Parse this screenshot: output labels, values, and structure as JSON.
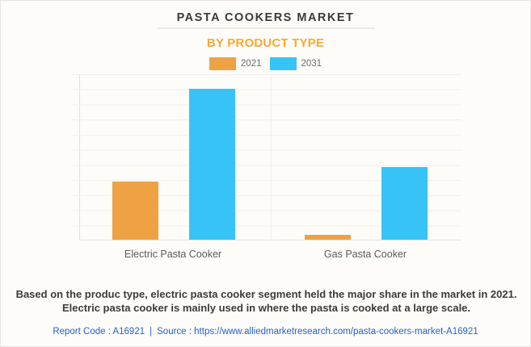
{
  "header": {
    "title": "PASTA COOKERS MARKET",
    "subtitle": "BY PRODUCT TYPE"
  },
  "chart_data": {
    "type": "bar",
    "categories": [
      "Electric Pasta Cooker",
      "Gas Pasta Cooker"
    ],
    "series": [
      {
        "name": "2021",
        "color": "#efa243",
        "values": [
          35,
          3
        ]
      },
      {
        "name": "2031",
        "color": "#38c3f6",
        "values": [
          91,
          44
        ]
      }
    ],
    "title": "PASTA COOKERS MARKET",
    "subtitle": "BY PRODUCT TYPE",
    "xlabel": "",
    "ylabel": "",
    "ylim": [
      0,
      100
    ],
    "grid": true,
    "legend_position": "top",
    "value_labels_shown": false,
    "y_tick_labels_shown": false
  },
  "description": "Based on the produc type, electric pasta cooker segment held the major share in the market in 2021. Electric pasta cooker is mainly used in where the pasta is cooked at a large scale.",
  "footer": {
    "report_code_label": "Report Code : A16921",
    "separator": "|",
    "source_label": "Source :",
    "source_url": "https://www.alliedmarketresearch.com/pasta-cookers-market-A16921"
  },
  "colors": {
    "accent_orange": "#f9a832",
    "bar_2021": "#efa243",
    "bar_2031": "#38c3f6",
    "title_text": "#3a3a3a",
    "link_blue": "#2463c4",
    "background": "#fdfcf9"
  }
}
